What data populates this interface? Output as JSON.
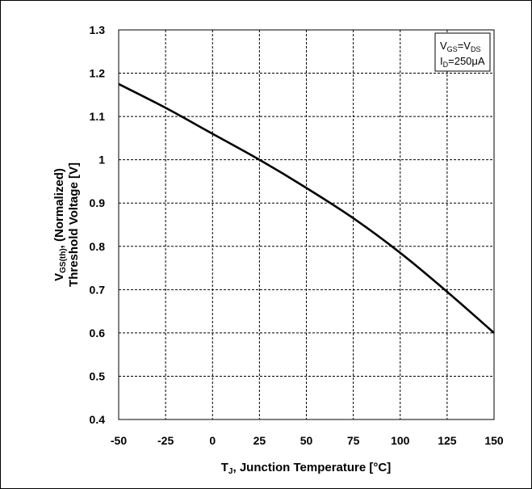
{
  "chart_data": {
    "type": "line",
    "xlabel_main": "T",
    "xlabel_sub": "J",
    "xlabel_rest": ", Junction Temperature [°C]",
    "ylabel_line1_pre": "V",
    "ylabel_line1_sub": "GS(th)",
    "ylabel_line1_post": ", (Normalized)",
    "ylabel_line2": "Threshold Voltage [V]",
    "xlim": [
      -50,
      150
    ],
    "ylim": [
      0.4,
      1.3
    ],
    "x_ticks": [
      -50,
      -25,
      0,
      25,
      50,
      75,
      100,
      125,
      150
    ],
    "y_ticks": [
      0.4,
      0.5,
      0.6,
      0.7,
      0.8,
      0.9,
      1,
      1.1,
      1.2,
      1.3
    ],
    "y_tick_labels": [
      "0.4",
      "0.5",
      "0.6",
      "0.7",
      "0.8",
      "0.9",
      "1",
      "1.1",
      "1.2",
      "1.3"
    ],
    "grid": true,
    "legend": {
      "line1": {
        "a": "V",
        "a_sub": "GS",
        "eq": "=V",
        "b_sub": "DS"
      },
      "line2": {
        "a": "I",
        "a_sub": "D",
        "rest": "=250μA"
      },
      "placement": "top-right"
    },
    "series": [
      {
        "x": [
          -50,
          -25,
          0,
          25,
          50,
          75,
          100,
          125,
          150
        ],
        "y": [
          1.175,
          1.12,
          1.06,
          1.0,
          0.935,
          0.865,
          0.785,
          0.695,
          0.6
        ]
      }
    ]
  }
}
